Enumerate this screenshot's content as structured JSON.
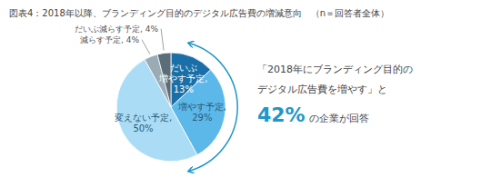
{
  "chart_data": {
    "type": "pie",
    "title": "図表4：2018年以降、ブランディング目的のデジタル広告費の増減意向　（n＝回答者全体）",
    "values": [
      13,
      29,
      50,
      4,
      4
    ],
    "value_labels": [
      "だいぶ\n増やす予定,\n13%",
      "増やす予定,\n29%",
      "変えない予定,\n50%",
      "減らす予定, 4%",
      "だいぶ減らす予定, 4%"
    ],
    "colors": [
      "#1a6fa8",
      "#5bb8e8",
      "#aaddf5",
      "#9aabb5",
      "#5a6e7a"
    ],
    "annotations": [
      "「2018年にブランディング目的の",
      "デジタル広告費を増やす」と",
      "42%",
      "の企業が回答"
    ]
  }
}
